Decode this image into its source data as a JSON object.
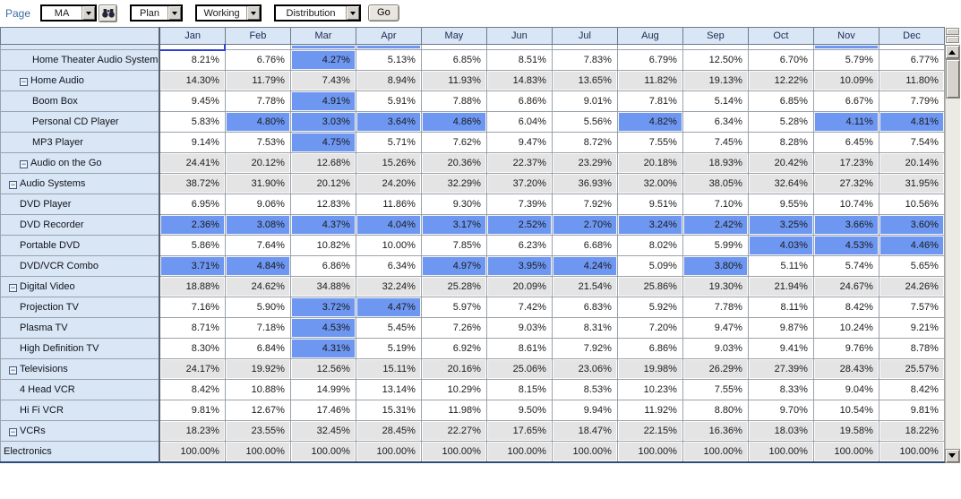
{
  "toolbar": {
    "page_label": "Page",
    "page_selector": "MA",
    "plan_selector": "Plan",
    "version_selector": "Working",
    "measure_selector": "Distribution",
    "go_label": "Go"
  },
  "grid": {
    "columns": [
      "Jan",
      "Feb",
      "Mar",
      "Apr",
      "May",
      "Jun",
      "Jul",
      "Aug",
      "Sep",
      "Oct",
      "Nov",
      "Dec"
    ],
    "partial_row": {
      "selected": [
        0
      ],
      "highlight": [
        2,
        3,
        10
      ]
    },
    "rows": [
      {
        "label": "Home Theater Audio System",
        "indent": 3,
        "collapsible": false,
        "kind": "leaf",
        "values": [
          "8.21%",
          "6.76%",
          "4.27%",
          "5.13%",
          "6.85%",
          "8.51%",
          "7.83%",
          "6.79%",
          "12.50%",
          "6.70%",
          "5.79%",
          "6.77%"
        ],
        "highlight": [
          2
        ]
      },
      {
        "label": "Home Audio",
        "indent": 2,
        "collapsible": true,
        "kind": "subtotal",
        "values": [
          "14.30%",
          "11.79%",
          "7.43%",
          "8.94%",
          "11.93%",
          "14.83%",
          "13.65%",
          "11.82%",
          "19.13%",
          "12.22%",
          "10.09%",
          "11.80%"
        ],
        "highlight": []
      },
      {
        "label": "Boom Box",
        "indent": 3,
        "collapsible": false,
        "kind": "leaf",
        "values": [
          "9.45%",
          "7.78%",
          "4.91%",
          "5.91%",
          "7.88%",
          "6.86%",
          "9.01%",
          "7.81%",
          "5.14%",
          "6.85%",
          "6.67%",
          "7.79%"
        ],
        "highlight": [
          2
        ]
      },
      {
        "label": "Personal CD Player",
        "indent": 3,
        "collapsible": false,
        "kind": "leaf",
        "values": [
          "5.83%",
          "4.80%",
          "3.03%",
          "3.64%",
          "4.86%",
          "6.04%",
          "5.56%",
          "4.82%",
          "6.34%",
          "5.28%",
          "4.11%",
          "4.81%"
        ],
        "highlight": [
          1,
          2,
          3,
          4,
          7,
          10,
          11
        ]
      },
      {
        "label": "MP3 Player",
        "indent": 3,
        "collapsible": false,
        "kind": "leaf",
        "values": [
          "9.14%",
          "7.53%",
          "4.75%",
          "5.71%",
          "7.62%",
          "9.47%",
          "8.72%",
          "7.55%",
          "7.45%",
          "8.28%",
          "6.45%",
          "7.54%"
        ],
        "highlight": [
          2
        ]
      },
      {
        "label": "Audio on the Go",
        "indent": 2,
        "collapsible": true,
        "kind": "subtotal",
        "values": [
          "24.41%",
          "20.12%",
          "12.68%",
          "15.26%",
          "20.36%",
          "22.37%",
          "23.29%",
          "20.18%",
          "18.93%",
          "20.42%",
          "17.23%",
          "20.14%"
        ],
        "highlight": []
      },
      {
        "label": "Audio Systems",
        "indent": 1,
        "collapsible": true,
        "kind": "subtotal",
        "values": [
          "38.72%",
          "31.90%",
          "20.12%",
          "24.20%",
          "32.29%",
          "37.20%",
          "36.93%",
          "32.00%",
          "38.05%",
          "32.64%",
          "27.32%",
          "31.95%"
        ],
        "highlight": []
      },
      {
        "label": "DVD Player",
        "indent": 2,
        "collapsible": false,
        "kind": "leaf",
        "values": [
          "6.95%",
          "9.06%",
          "12.83%",
          "11.86%",
          "9.30%",
          "7.39%",
          "7.92%",
          "9.51%",
          "7.10%",
          "9.55%",
          "10.74%",
          "10.56%"
        ],
        "highlight": []
      },
      {
        "label": "DVD Recorder",
        "indent": 2,
        "collapsible": false,
        "kind": "leaf",
        "values": [
          "2.36%",
          "3.08%",
          "4.37%",
          "4.04%",
          "3.17%",
          "2.52%",
          "2.70%",
          "3.24%",
          "2.42%",
          "3.25%",
          "3.66%",
          "3.60%"
        ],
        "highlight": [
          0,
          1,
          2,
          3,
          4,
          5,
          6,
          7,
          8,
          9,
          10,
          11
        ]
      },
      {
        "label": "Portable DVD",
        "indent": 2,
        "collapsible": false,
        "kind": "leaf",
        "values": [
          "5.86%",
          "7.64%",
          "10.82%",
          "10.00%",
          "7.85%",
          "6.23%",
          "6.68%",
          "8.02%",
          "5.99%",
          "4.03%",
          "4.53%",
          "4.46%"
        ],
        "highlight": [
          9,
          10,
          11
        ]
      },
      {
        "label": "DVD/VCR Combo",
        "indent": 2,
        "collapsible": false,
        "kind": "leaf",
        "values": [
          "3.71%",
          "4.84%",
          "6.86%",
          "6.34%",
          "4.97%",
          "3.95%",
          "4.24%",
          "5.09%",
          "3.80%",
          "5.11%",
          "5.74%",
          "5.65%"
        ],
        "highlight": [
          0,
          1,
          4,
          5,
          6,
          8
        ]
      },
      {
        "label": "Digital Video",
        "indent": 1,
        "collapsible": true,
        "kind": "subtotal",
        "values": [
          "18.88%",
          "24.62%",
          "34.88%",
          "32.24%",
          "25.28%",
          "20.09%",
          "21.54%",
          "25.86%",
          "19.30%",
          "21.94%",
          "24.67%",
          "24.26%"
        ],
        "highlight": []
      },
      {
        "label": "Projection TV",
        "indent": 2,
        "collapsible": false,
        "kind": "leaf",
        "values": [
          "7.16%",
          "5.90%",
          "3.72%",
          "4.47%",
          "5.97%",
          "7.42%",
          "6.83%",
          "5.92%",
          "7.78%",
          "8.11%",
          "8.42%",
          "7.57%"
        ],
        "highlight": [
          2,
          3
        ]
      },
      {
        "label": "Plasma TV",
        "indent": 2,
        "collapsible": false,
        "kind": "leaf",
        "values": [
          "8.71%",
          "7.18%",
          "4.53%",
          "5.45%",
          "7.26%",
          "9.03%",
          "8.31%",
          "7.20%",
          "9.47%",
          "9.87%",
          "10.24%",
          "9.21%"
        ],
        "highlight": [
          2
        ]
      },
      {
        "label": "High Definition TV",
        "indent": 2,
        "collapsible": false,
        "kind": "leaf",
        "values": [
          "8.30%",
          "6.84%",
          "4.31%",
          "5.19%",
          "6.92%",
          "8.61%",
          "7.92%",
          "6.86%",
          "9.03%",
          "9.41%",
          "9.76%",
          "8.78%"
        ],
        "highlight": [
          2
        ]
      },
      {
        "label": "Televisions",
        "indent": 1,
        "collapsible": true,
        "kind": "subtotal",
        "values": [
          "24.17%",
          "19.92%",
          "12.56%",
          "15.11%",
          "20.16%",
          "25.06%",
          "23.06%",
          "19.98%",
          "26.29%",
          "27.39%",
          "28.43%",
          "25.57%"
        ],
        "highlight": []
      },
      {
        "label": "4 Head VCR",
        "indent": 2,
        "collapsible": false,
        "kind": "leaf",
        "values": [
          "8.42%",
          "10.88%",
          "14.99%",
          "13.14%",
          "10.29%",
          "8.15%",
          "8.53%",
          "10.23%",
          "7.55%",
          "8.33%",
          "9.04%",
          "8.42%"
        ],
        "highlight": []
      },
      {
        "label": "Hi Fi VCR",
        "indent": 2,
        "collapsible": false,
        "kind": "leaf",
        "values": [
          "9.81%",
          "12.67%",
          "17.46%",
          "15.31%",
          "11.98%",
          "9.50%",
          "9.94%",
          "11.92%",
          "8.80%",
          "9.70%",
          "10.54%",
          "9.81%"
        ],
        "highlight": []
      },
      {
        "label": "VCRs",
        "indent": 1,
        "collapsible": true,
        "kind": "subtotal",
        "values": [
          "18.23%",
          "23.55%",
          "32.45%",
          "28.45%",
          "22.27%",
          "17.65%",
          "18.47%",
          "22.15%",
          "16.36%",
          "18.03%",
          "19.58%",
          "18.22%"
        ],
        "highlight": []
      },
      {
        "label": "Electronics",
        "indent": 0,
        "collapsible": false,
        "kind": "total",
        "values": [
          "100.00%",
          "100.00%",
          "100.00%",
          "100.00%",
          "100.00%",
          "100.00%",
          "100.00%",
          "100.00%",
          "100.00%",
          "100.00%",
          "100.00%",
          "100.00%"
        ],
        "highlight": []
      }
    ]
  },
  "colors": {
    "cell_highlight": "#6e97f2",
    "subtotal_bg": "#e4e4e4",
    "header_bg": "#d9e6f5",
    "label_bg": "#d9e6f5",
    "header_text": "#1c2a50",
    "selected_cell_border": "#2e41d5",
    "grid_bottom_border": "#2d4d76",
    "page_label_text": "#3a6ea5"
  }
}
